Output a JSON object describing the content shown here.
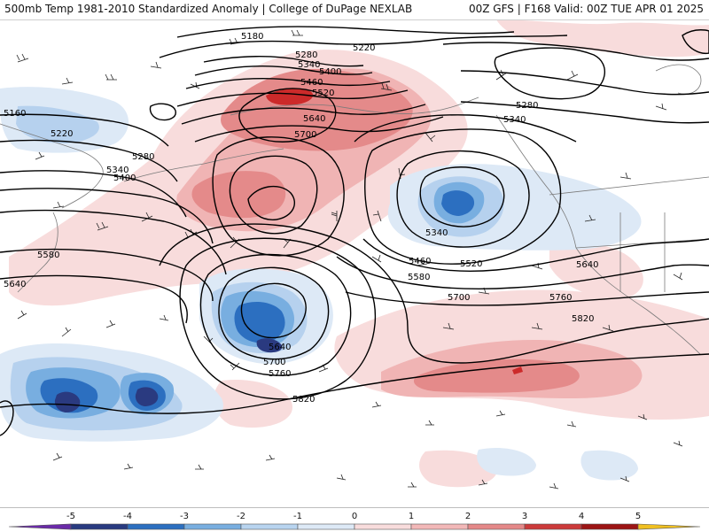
{
  "header": {
    "title_left": "500mb Temp 1981-2010 Standardized Anomaly | College of DuPage NEXLAB",
    "title_right": "00Z GFS | F168 Valid: 00Z TUE APR 01 2025"
  },
  "contours": {
    "labels": [
      "5180",
      "5280",
      "5340",
      "5400",
      "5460",
      "5520",
      "5640",
      "5700",
      "5160",
      "5220",
      "5280",
      "5340",
      "5400",
      "5580",
      "5640",
      "5220",
      "5280",
      "5340",
      "5340",
      "5460",
      "5520",
      "5580",
      "5700",
      "5640",
      "5760",
      "5820",
      "5640",
      "5700",
      "5760",
      "5820"
    ]
  },
  "legend": {
    "ticks": [
      "-5",
      "-4",
      "-3",
      "-2",
      "-1",
      "0",
      "1",
      "2",
      "3",
      "4",
      "5"
    ],
    "colors": {
      "neg5": "#6a2aa8",
      "neg4": "#283a80",
      "neg3": "#2c6fc0",
      "neg2": "#78aee0",
      "neg1": "#b8d4ef",
      "neg05": "#dde9f6",
      "zero": "#ffffff",
      "pos05": "#f8dcdc",
      "pos1": "#f2b8b8",
      "pos2": "#e48888",
      "pos3": "#cc3a3a",
      "pos4": "#9c1414",
      "pos5": "#6e0a0a",
      "over": "#f0c020"
    }
  },
  "colors": {
    "contour": "#000000",
    "coastline": "#7a7a7a",
    "warm_light": "#f8dcdc",
    "warm_mid": "#f0b4b4",
    "warm_strong": "#e48a8a",
    "warm_peak": "#cc2a2a",
    "cold_light": "#dde9f6",
    "cold_mid": "#b6d1ee",
    "cold_strong": "#78aee0",
    "cold_deep": "#2c6fc0",
    "cold_core": "#2a3a80"
  }
}
